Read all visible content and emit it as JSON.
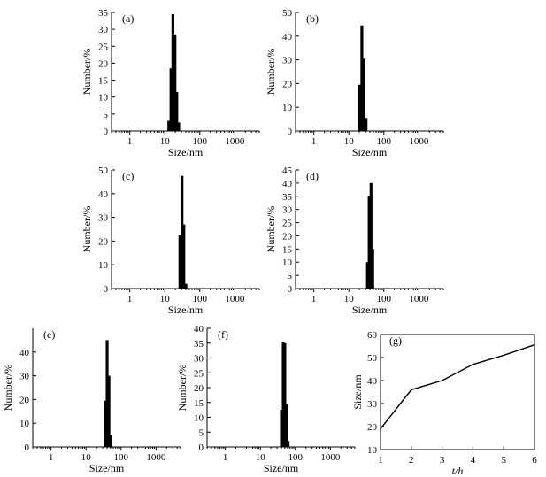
{
  "chart_data": [
    {
      "id": "a",
      "type": "bar",
      "panel_label": "(a)",
      "xlabel": "Size/nm",
      "ylabel": "Number/%",
      "x_scale": "log",
      "xlim": [
        0.3,
        5000
      ],
      "ylim": [
        0,
        35
      ],
      "x_ticks": [
        1,
        10,
        100,
        1000
      ],
      "x_tick_labels": [
        "1",
        "10",
        "100",
        "1000"
      ],
      "y_ticks": [
        0,
        5,
        10,
        15,
        20,
        25,
        30,
        35
      ],
      "y_tick_labels": [
        "0",
        "5",
        "10",
        "15",
        "20",
        "25",
        "30",
        "35"
      ],
      "bars": [
        {
          "x": 13,
          "y": 3
        },
        {
          "x": 15,
          "y": 18.5
        },
        {
          "x": 17,
          "y": 34.5
        },
        {
          "x": 19.5,
          "y": 28.5
        },
        {
          "x": 22,
          "y": 11.5
        },
        {
          "x": 25,
          "y": 2.5
        }
      ]
    },
    {
      "id": "b",
      "type": "bar",
      "panel_label": "(b)",
      "xlabel": "Size/nm",
      "ylabel": "Number/%",
      "x_scale": "log",
      "xlim": [
        0.3,
        5000
      ],
      "ylim": [
        0,
        50
      ],
      "x_ticks": [
        1,
        10,
        100,
        1000
      ],
      "x_tick_labels": [
        "1",
        "10",
        "100",
        "1000"
      ],
      "y_ticks": [
        0,
        10,
        20,
        30,
        40,
        50
      ],
      "y_tick_labels": [
        "0",
        "10",
        "20",
        "30",
        "40",
        "50"
      ],
      "bars": [
        {
          "x": 20.5,
          "y": 19.5
        },
        {
          "x": 23.5,
          "y": 44.5
        },
        {
          "x": 27,
          "y": 30.5
        },
        {
          "x": 31,
          "y": 5.5
        }
      ]
    },
    {
      "id": "c",
      "type": "bar",
      "panel_label": "(c)",
      "xlabel": "Size/nm",
      "ylabel": "Number/%",
      "x_scale": "log",
      "xlim": [
        0.3,
        5000
      ],
      "ylim": [
        0,
        50
      ],
      "x_ticks": [
        1,
        10,
        100,
        1000
      ],
      "x_tick_labels": [
        "1",
        "10",
        "100",
        "1000"
      ],
      "y_ticks": [
        0,
        10,
        20,
        30,
        40,
        50
      ],
      "y_tick_labels": [
        "0",
        "10",
        "20",
        "30",
        "40",
        "50"
      ],
      "bars": [
        {
          "x": 27,
          "y": 22.5
        },
        {
          "x": 31,
          "y": 47.5
        },
        {
          "x": 35,
          "y": 27
        },
        {
          "x": 40,
          "y": 2
        }
      ]
    },
    {
      "id": "d",
      "type": "bar",
      "panel_label": "(d)",
      "xlabel": "Size/nm",
      "ylabel": "Number/%",
      "x_scale": "log",
      "xlim": [
        0.3,
        5000
      ],
      "ylim": [
        0,
        45
      ],
      "x_ticks": [
        1,
        10,
        100,
        1000
      ],
      "x_tick_labels": [
        "1",
        "10",
        "100",
        "1000"
      ],
      "y_ticks": [
        0,
        5,
        10,
        15,
        20,
        25,
        30,
        35,
        40,
        45
      ],
      "y_tick_labels": [
        "0",
        "5",
        "10",
        "15",
        "20",
        "25",
        "30",
        "35",
        "40",
        "45"
      ],
      "bars": [
        {
          "x": 34,
          "y": 10
        },
        {
          "x": 38,
          "y": 35
        },
        {
          "x": 43,
          "y": 40
        },
        {
          "x": 48,
          "y": 15
        }
      ]
    },
    {
      "id": "e",
      "type": "bar",
      "panel_label": "(e)",
      "xlabel": "Size/nm",
      "ylabel": "Number/%",
      "x_scale": "log",
      "xlim": [
        0.3,
        5000
      ],
      "ylim": [
        0,
        50
      ],
      "x_ticks": [
        1,
        10,
        100,
        1000
      ],
      "x_tick_labels": [
        "1",
        "10",
        "100",
        "1000"
      ],
      "y_ticks": [
        0,
        10,
        20,
        30,
        40
      ],
      "y_tick_labels": [
        "0",
        "10",
        "20",
        "30",
        "40"
      ],
      "bars": [
        {
          "x": 35,
          "y": 19.5
        },
        {
          "x": 40,
          "y": 45
        },
        {
          "x": 45,
          "y": 30
        },
        {
          "x": 51,
          "y": 5
        }
      ]
    },
    {
      "id": "f",
      "type": "bar",
      "panel_label": "(f)",
      "xlabel": "Size/nm",
      "ylabel": "Number/%",
      "x_scale": "log",
      "xlim": [
        0.3,
        5000
      ],
      "ylim": [
        0,
        40
      ],
      "x_ticks": [
        1,
        10,
        100,
        1000
      ],
      "x_tick_labels": [
        "1",
        "10",
        "100",
        "1000"
      ],
      "y_ticks": [
        0,
        5,
        10,
        15,
        20,
        25,
        30,
        35,
        40
      ],
      "y_tick_labels": [
        "0",
        "5",
        "10",
        "15",
        "20",
        "25",
        "30",
        "35",
        "40"
      ],
      "bars": [
        {
          "x": 40,
          "y": 12.5
        },
        {
          "x": 45,
          "y": 35.5
        },
        {
          "x": 50,
          "y": 35
        },
        {
          "x": 56,
          "y": 14.5
        },
        {
          "x": 62,
          "y": 2
        }
      ]
    },
    {
      "id": "g",
      "type": "line",
      "panel_label": "(g)",
      "xlabel": "t/h",
      "ylabel": "Size/nm",
      "xlim": [
        1,
        6
      ],
      "ylim": [
        10,
        60
      ],
      "x_ticks": [
        1,
        2,
        3,
        4,
        5,
        6
      ],
      "x_tick_labels": [
        "1",
        "2",
        "3",
        "4",
        "5",
        "6"
      ],
      "y_ticks": [
        10,
        20,
        30,
        40,
        50,
        60
      ],
      "y_tick_labels": [
        "10",
        "20",
        "30",
        "40",
        "50",
        "60"
      ],
      "x": [
        1,
        2,
        3,
        4,
        5,
        6
      ],
      "y": [
        19,
        36,
        40,
        47,
        51,
        55.5
      ]
    }
  ]
}
